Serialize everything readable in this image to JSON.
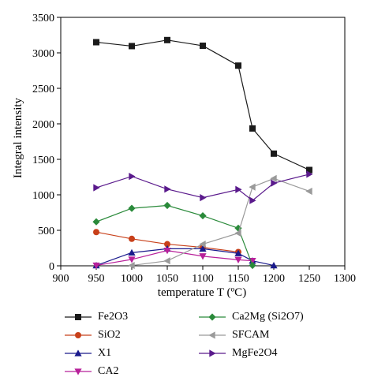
{
  "chart_data": {
    "type": "line",
    "xlabel": "temperature T (ºC)",
    "ylabel": "Integral intensity",
    "xlim": [
      900,
      1300
    ],
    "ylim": [
      0,
      3500
    ],
    "xticks": [
      900,
      950,
      1000,
      1050,
      1100,
      1150,
      1200,
      1250,
      1300
    ],
    "yticks": [
      0,
      500,
      1000,
      1500,
      2000,
      2500,
      3000,
      3500
    ],
    "grid": false,
    "legend_position": "bottom",
    "series": [
      {
        "name": "Fe2O3",
        "color": "#1a1a1a",
        "marker": "square",
        "x": [
          950,
          1000,
          1050,
          1100,
          1150,
          1170,
          1200,
          1250
        ],
        "y": [
          3150,
          3095,
          3180,
          3100,
          2820,
          1935,
          1580,
          1350
        ]
      },
      {
        "name": "SiO2",
        "color": "#c8401a",
        "marker": "circle",
        "x": [
          950,
          1000,
          1050,
          1100,
          1150
        ],
        "y": [
          475,
          380,
          305,
          260,
          195
        ]
      },
      {
        "name": "X1",
        "color": "#1a1a8c",
        "marker": "triangle-up",
        "x": [
          950,
          1000,
          1050,
          1100,
          1150,
          1170,
          1200
        ],
        "y": [
          5,
          185,
          240,
          240,
          175,
          70,
          5
        ]
      },
      {
        "name": "CA2",
        "color": "#b8209a",
        "marker": "triangle-down",
        "x": [
          950,
          1000,
          1050,
          1100,
          1150,
          1170
        ],
        "y": [
          5,
          90,
          215,
          135,
          85,
          70
        ]
      },
      {
        "name": "Ca2Mg (Si2O7)",
        "color": "#2a8a3a",
        "marker": "diamond",
        "x": [
          950,
          1000,
          1050,
          1100,
          1150,
          1170
        ],
        "y": [
          620,
          810,
          850,
          705,
          530,
          5
        ]
      },
      {
        "name": "SFCAM",
        "color": "#9a9a9a",
        "marker": "triangle-left",
        "x": [
          1000,
          1050,
          1100,
          1150,
          1170,
          1200,
          1250
        ],
        "y": [
          5,
          70,
          305,
          460,
          1110,
          1230,
          1050
        ]
      },
      {
        "name": "MgFe2O4",
        "color": "#5a1a8c",
        "marker": "triangle-right",
        "x": [
          950,
          1000,
          1050,
          1100,
          1150,
          1170,
          1200,
          1250
        ],
        "y": [
          1100,
          1260,
          1080,
          960,
          1075,
          920,
          1165,
          1290
        ]
      }
    ]
  }
}
